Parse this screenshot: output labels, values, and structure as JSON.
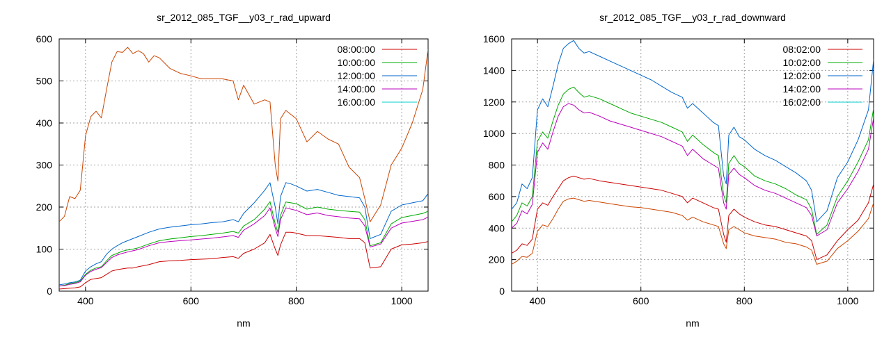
{
  "chart_data": [
    {
      "type": "line",
      "title": "sr_2012_085_TGF__y03_r_rad_upward",
      "xlabel": "nm",
      "ylabel": "",
      "xlim": [
        350,
        1050
      ],
      "ylim": [
        0,
        600
      ],
      "xticks": [
        400,
        600,
        800,
        1000
      ],
      "yticks": [
        0,
        100,
        200,
        300,
        400,
        500,
        600
      ],
      "grid": true,
      "legend_position": "top-right",
      "series": [
        {
          "name": "08:00:00",
          "color": "#cc0000",
          "x": [
            350,
            360,
            370,
            380,
            390,
            400,
            410,
            420,
            430,
            440,
            450,
            460,
            470,
            480,
            490,
            500,
            520,
            540,
            560,
            580,
            600,
            620,
            640,
            660,
            680,
            690,
            700,
            720,
            740,
            750,
            760,
            765,
            770,
            780,
            790,
            800,
            820,
            840,
            860,
            880,
            900,
            920,
            930,
            940,
            960,
            980,
            1000,
            1020,
            1040,
            1050
          ],
          "y": [
            5,
            6,
            7,
            8,
            10,
            20,
            28,
            30,
            32,
            40,
            48,
            51,
            53,
            55,
            55,
            58,
            63,
            70,
            72,
            73,
            75,
            76,
            77,
            80,
            82,
            78,
            90,
            100,
            115,
            135,
            100,
            85,
            110,
            140,
            140,
            138,
            132,
            132,
            130,
            128,
            125,
            125,
            115,
            55,
            58,
            100,
            110,
            112,
            115,
            118
          ]
        },
        {
          "name": "10:00:00",
          "color": "#00aa00",
          "x": [
            350,
            360,
            370,
            380,
            390,
            400,
            410,
            420,
            430,
            440,
            450,
            460,
            470,
            480,
            490,
            500,
            520,
            540,
            560,
            580,
            600,
            620,
            640,
            660,
            680,
            690,
            700,
            720,
            740,
            750,
            760,
            765,
            770,
            780,
            790,
            800,
            820,
            840,
            860,
            880,
            900,
            920,
            930,
            940,
            960,
            980,
            1000,
            1020,
            1040,
            1050
          ],
          "y": [
            12,
            14,
            18,
            20,
            24,
            40,
            50,
            55,
            58,
            72,
            85,
            90,
            95,
            98,
            100,
            103,
            112,
            120,
            124,
            127,
            130,
            132,
            135,
            138,
            142,
            138,
            155,
            170,
            195,
            213,
            160,
            140,
            180,
            212,
            210,
            208,
            195,
            200,
            195,
            192,
            190,
            188,
            170,
            108,
            115,
            160,
            175,
            180,
            185,
            190
          ]
        },
        {
          "name": "12:00:00",
          "color": "#0066cc",
          "x": [
            350,
            360,
            370,
            380,
            390,
            400,
            410,
            420,
            430,
            440,
            450,
            460,
            470,
            480,
            490,
            500,
            520,
            540,
            560,
            580,
            600,
            620,
            640,
            660,
            680,
            690,
            700,
            720,
            740,
            750,
            760,
            765,
            770,
            780,
            790,
            800,
            820,
            840,
            860,
            880,
            900,
            920,
            930,
            940,
            960,
            980,
            1000,
            1020,
            1040,
            1050
          ],
          "y": [
            15,
            17,
            20,
            22,
            26,
            48,
            58,
            65,
            70,
            88,
            100,
            108,
            115,
            120,
            125,
            130,
            140,
            148,
            152,
            155,
            158,
            160,
            163,
            165,
            170,
            165,
            185,
            210,
            240,
            258,
            200,
            160,
            225,
            258,
            255,
            250,
            238,
            242,
            235,
            228,
            225,
            222,
            200,
            125,
            135,
            190,
            205,
            210,
            215,
            232
          ]
        },
        {
          "name": "14:00:00",
          "color": "#bb00bb",
          "x": [
            350,
            360,
            370,
            380,
            390,
            400,
            410,
            420,
            430,
            440,
            450,
            460,
            470,
            480,
            490,
            500,
            520,
            540,
            560,
            580,
            600,
            620,
            640,
            660,
            680,
            690,
            700,
            720,
            740,
            750,
            760,
            765,
            770,
            780,
            790,
            800,
            820,
            840,
            860,
            880,
            900,
            920,
            930,
            940,
            960,
            980,
            1000,
            1020,
            1040,
            1050
          ],
          "y": [
            12,
            13,
            16,
            18,
            22,
            38,
            47,
            52,
            56,
            68,
            80,
            86,
            90,
            93,
            96,
            99,
            108,
            115,
            118,
            120,
            122,
            124,
            126,
            129,
            132,
            128,
            145,
            160,
            180,
            198,
            150,
            130,
            170,
            198,
            195,
            192,
            182,
            186,
            180,
            177,
            174,
            172,
            155,
            105,
            112,
            150,
            162,
            166,
            170,
            176
          ]
        },
        {
          "name": "16:00:00",
          "color": "#00cccc",
          "x": [],
          "y": []
        },
        {
          "name": "",
          "color": "#cc4400",
          "x": [
            350,
            360,
            370,
            380,
            390,
            400,
            410,
            420,
            430,
            440,
            450,
            460,
            470,
            480,
            490,
            500,
            510,
            520,
            530,
            540,
            560,
            580,
            600,
            620,
            640,
            660,
            680,
            690,
            700,
            720,
            740,
            750,
            760,
            765,
            770,
            780,
            790,
            800,
            820,
            840,
            860,
            880,
            900,
            920,
            930,
            940,
            960,
            980,
            1000,
            1020,
            1040,
            1050
          ],
          "y": [
            165,
            178,
            225,
            220,
            240,
            370,
            415,
            428,
            412,
            480,
            545,
            570,
            568,
            580,
            565,
            572,
            565,
            545,
            560,
            555,
            530,
            518,
            512,
            505,
            505,
            505,
            500,
            455,
            490,
            445,
            455,
            450,
            300,
            262,
            410,
            430,
            420,
            410,
            355,
            380,
            362,
            350,
            295,
            270,
            220,
            165,
            205,
            300,
            340,
            400,
            480,
            575
          ]
        }
      ]
    },
    {
      "type": "line",
      "title": "sr_2012_085_TGF__y03_r_rad_downward",
      "xlabel": "nm",
      "ylabel": "",
      "xlim": [
        350,
        1050
      ],
      "ylim": [
        0,
        1600
      ],
      "xticks": [
        400,
        600,
        800,
        1000
      ],
      "yticks": [
        0,
        200,
        400,
        600,
        800,
        1000,
        1200,
        1400,
        1600
      ],
      "grid": true,
      "legend_position": "top-right",
      "series": [
        {
          "name": "08:02:00",
          "color": "#cc0000",
          "x": [
            350,
            360,
            370,
            380,
            390,
            400,
            410,
            420,
            430,
            440,
            450,
            460,
            470,
            480,
            490,
            500,
            520,
            540,
            560,
            580,
            600,
            620,
            640,
            660,
            680,
            690,
            700,
            720,
            740,
            750,
            760,
            765,
            770,
            780,
            790,
            800,
            820,
            840,
            860,
            880,
            900,
            920,
            930,
            940,
            960,
            980,
            1000,
            1020,
            1040,
            1050
          ],
          "y": [
            240,
            260,
            300,
            290,
            330,
            520,
            560,
            545,
            600,
            650,
            700,
            720,
            730,
            720,
            710,
            715,
            700,
            690,
            680,
            670,
            660,
            650,
            640,
            620,
            600,
            560,
            590,
            560,
            530,
            520,
            360,
            310,
            480,
            520,
            490,
            470,
            440,
            420,
            410,
            390,
            370,
            350,
            320,
            200,
            230,
            320,
            390,
            450,
            560,
            680
          ]
        },
        {
          "name": "10:02:00",
          "color": "#00aa00",
          "x": [
            350,
            360,
            370,
            380,
            390,
            400,
            410,
            420,
            430,
            440,
            450,
            460,
            470,
            480,
            490,
            500,
            520,
            540,
            560,
            580,
            600,
            620,
            640,
            660,
            680,
            690,
            700,
            720,
            740,
            750,
            760,
            765,
            770,
            780,
            790,
            800,
            820,
            840,
            860,
            880,
            900,
            920,
            930,
            940,
            960,
            980,
            1000,
            1020,
            1040,
            1050
          ],
          "y": [
            440,
            480,
            560,
            540,
            600,
            950,
            1010,
            970,
            1080,
            1180,
            1250,
            1280,
            1295,
            1260,
            1230,
            1240,
            1220,
            1190,
            1160,
            1130,
            1110,
            1090,
            1070,
            1040,
            1010,
            950,
            990,
            930,
            880,
            860,
            610,
            560,
            810,
            860,
            810,
            790,
            730,
            700,
            680,
            650,
            610,
            580,
            520,
            360,
            420,
            600,
            700,
            820,
            960,
            1160
          ]
        },
        {
          "name": "12:02:00",
          "color": "#0066cc",
          "x": [
            350,
            360,
            370,
            380,
            390,
            400,
            410,
            420,
            430,
            440,
            450,
            460,
            470,
            480,
            490,
            500,
            520,
            540,
            560,
            580,
            600,
            620,
            640,
            660,
            680,
            690,
            700,
            720,
            740,
            750,
            760,
            765,
            770,
            780,
            790,
            800,
            820,
            840,
            860,
            880,
            900,
            920,
            930,
            940,
            960,
            980,
            1000,
            1020,
            1040,
            1050
          ],
          "y": [
            520,
            560,
            680,
            650,
            720,
            1150,
            1220,
            1170,
            1300,
            1440,
            1540,
            1570,
            1590,
            1540,
            1510,
            1520,
            1490,
            1460,
            1430,
            1400,
            1370,
            1340,
            1300,
            1260,
            1230,
            1160,
            1190,
            1130,
            1070,
            1050,
            730,
            680,
            990,
            1040,
            980,
            960,
            900,
            860,
            830,
            790,
            750,
            700,
            640,
            440,
            510,
            720,
            820,
            960,
            1150,
            1470
          ]
        },
        {
          "name": "14:02:00",
          "color": "#bb00bb",
          "x": [
            350,
            360,
            370,
            380,
            390,
            400,
            410,
            420,
            430,
            440,
            450,
            460,
            470,
            480,
            490,
            500,
            520,
            540,
            560,
            580,
            600,
            620,
            640,
            660,
            680,
            690,
            700,
            720,
            740,
            750,
            760,
            765,
            770,
            780,
            790,
            800,
            820,
            840,
            860,
            880,
            900,
            920,
            930,
            940,
            960,
            980,
            1000,
            1020,
            1040,
            1050
          ],
          "y": [
            400,
            430,
            510,
            490,
            550,
            880,
            940,
            900,
            1010,
            1110,
            1170,
            1190,
            1180,
            1150,
            1130,
            1135,
            1110,
            1080,
            1060,
            1040,
            1020,
            1000,
            980,
            950,
            920,
            860,
            900,
            840,
            800,
            780,
            560,
            520,
            740,
            780,
            740,
            720,
            670,
            640,
            620,
            590,
            560,
            530,
            480,
            350,
            390,
            560,
            650,
            760,
            900,
            1100
          ]
        },
        {
          "name": "16:02:00",
          "color": "#00cccc",
          "x": [],
          "y": []
        },
        {
          "name": "",
          "color": "#cc4400",
          "x": [
            350,
            360,
            370,
            380,
            390,
            400,
            410,
            420,
            430,
            440,
            450,
            460,
            470,
            480,
            490,
            500,
            520,
            540,
            560,
            580,
            600,
            620,
            640,
            660,
            680,
            690,
            700,
            720,
            740,
            750,
            760,
            765,
            770,
            780,
            790,
            800,
            820,
            840,
            860,
            880,
            900,
            920,
            930,
            940,
            960,
            980,
            1000,
            1020,
            1040,
            1050
          ],
          "y": [
            170,
            190,
            220,
            215,
            240,
            380,
            420,
            410,
            460,
            520,
            570,
            585,
            590,
            580,
            570,
            575,
            565,
            555,
            545,
            535,
            530,
            520,
            510,
            500,
            480,
            450,
            470,
            440,
            420,
            410,
            300,
            270,
            390,
            410,
            390,
            370,
            350,
            340,
            330,
            310,
            300,
            280,
            260,
            170,
            190,
            270,
            320,
            380,
            460,
            560
          ]
        }
      ]
    }
  ]
}
